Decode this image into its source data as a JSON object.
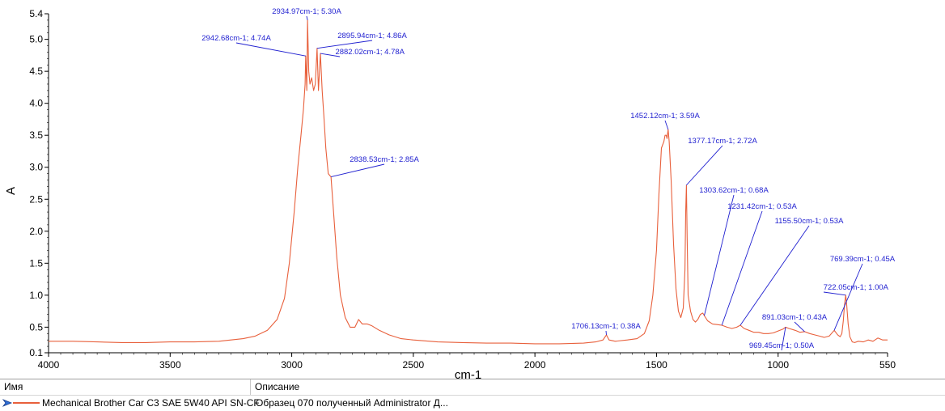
{
  "chart_data": {
    "type": "line",
    "xlabel": "cm-1",
    "ylabel": "A",
    "xlim": [
      4000,
      550
    ],
    "ylim": [
      0.1,
      5.4
    ],
    "x_ticks": [
      4000,
      3500,
      3000,
      2500,
      2000,
      1500,
      1000,
      550
    ],
    "y_ticks": [
      0.1,
      0.5,
      1.0,
      1.5,
      2.0,
      2.5,
      3.0,
      3.5,
      4.0,
      4.5,
      5.0,
      5.4
    ],
    "x_tick_labels": [
      "4000",
      "3500",
      "3000",
      "2500",
      "2000",
      "1500",
      "1000",
      "550"
    ],
    "y_tick_labels": [
      "0.1",
      "0.5",
      "1.0",
      "1.5",
      "2.0",
      "2.5",
      "3.0",
      "3.5",
      "4.0",
      "4.5",
      "5.0",
      "5.4"
    ],
    "series_color": "#e8603c",
    "annotation_color": "#1f1fd0",
    "series": [
      {
        "name": "Mechanical Brother Car C3 SAE 5W40 API SN-CF",
        "x": [
          4000,
          3900,
          3800,
          3700,
          3600,
          3500,
          3400,
          3300,
          3200,
          3150,
          3100,
          3060,
          3030,
          3010,
          2990,
          2975,
          2962,
          2952,
          2945,
          2942.68,
          2938,
          2934.97,
          2930,
          2925,
          2918,
          2910,
          2903,
          2895.94,
          2890,
          2882.02,
          2875,
          2868,
          2860,
          2850,
          2838.53,
          2830,
          2815,
          2800,
          2780,
          2760,
          2740,
          2725,
          2710,
          2690,
          2670,
          2640,
          2600,
          2550,
          2500,
          2400,
          2300,
          2200,
          2100,
          2000,
          1900,
          1800,
          1750,
          1720,
          1706.13,
          1695,
          1670,
          1620,
          1580,
          1550,
          1530,
          1515,
          1500,
          1490,
          1480,
          1470,
          1465,
          1460,
          1457,
          1452.12,
          1448,
          1440,
          1430,
          1420,
          1410,
          1400,
          1390,
          1383,
          1380,
          1377.17,
          1374,
          1370,
          1360,
          1350,
          1340,
          1330,
          1320,
          1310,
          1303.62,
          1290,
          1270,
          1250,
          1231.42,
          1210,
          1190,
          1170,
          1155.5,
          1140,
          1120,
          1100,
          1080,
          1060,
          1040,
          1020,
          1000,
          980,
          969.45,
          955,
          930,
          910,
          891.03,
          870,
          850,
          830,
          810,
          790,
          769.39,
          755,
          745,
          738,
          732,
          727,
          722.05,
          718,
          712,
          705,
          695,
          685,
          670,
          650,
          630,
          610,
          590,
          570,
          550
        ],
        "y": [
          0.28,
          0.28,
          0.27,
          0.26,
          0.26,
          0.27,
          0.27,
          0.28,
          0.32,
          0.36,
          0.45,
          0.62,
          0.95,
          1.5,
          2.3,
          3.0,
          3.5,
          3.9,
          4.3,
          4.74,
          4.2,
          5.3,
          4.5,
          4.3,
          4.4,
          4.2,
          4.3,
          4.86,
          4.2,
          4.78,
          4.2,
          3.8,
          3.3,
          2.9,
          2.85,
          2.4,
          1.6,
          1.0,
          0.65,
          0.5,
          0.5,
          0.62,
          0.55,
          0.55,
          0.52,
          0.45,
          0.38,
          0.32,
          0.3,
          0.27,
          0.26,
          0.25,
          0.25,
          0.24,
          0.24,
          0.25,
          0.27,
          0.3,
          0.38,
          0.3,
          0.28,
          0.3,
          0.32,
          0.4,
          0.6,
          1.0,
          1.7,
          2.6,
          3.3,
          3.4,
          3.5,
          3.5,
          3.45,
          3.59,
          3.4,
          2.8,
          1.8,
          1.1,
          0.75,
          0.65,
          0.8,
          1.4,
          2.3,
          2.72,
          1.9,
          1.0,
          0.75,
          0.62,
          0.58,
          0.62,
          0.7,
          0.72,
          0.68,
          0.6,
          0.55,
          0.54,
          0.53,
          0.5,
          0.48,
          0.5,
          0.53,
          0.48,
          0.45,
          0.42,
          0.42,
          0.4,
          0.4,
          0.41,
          0.44,
          0.47,
          0.5,
          0.48,
          0.45,
          0.42,
          0.43,
          0.4,
          0.38,
          0.36,
          0.34,
          0.36,
          0.45,
          0.38,
          0.35,
          0.4,
          0.6,
          0.85,
          1.0,
          0.85,
          0.55,
          0.35,
          0.27,
          0.26,
          0.28,
          0.27,
          0.3,
          0.28,
          0.33,
          0.3,
          0.3
        ]
      }
    ],
    "annotations": [
      {
        "x": 2934.97,
        "y": 5.3,
        "label": "2934.97cm-1; 5.30A"
      },
      {
        "x": 2942.68,
        "y": 4.74,
        "label": "2942.68cm-1; 4.74A"
      },
      {
        "x": 2895.94,
        "y": 4.86,
        "label": "2895.94cm-1; 4.86A"
      },
      {
        "x": 2882.02,
        "y": 4.78,
        "label": "2882.02cm-1; 4.78A"
      },
      {
        "x": 2838.53,
        "y": 2.85,
        "label": "2838.53cm-1; 2.85A"
      },
      {
        "x": 1452.12,
        "y": 3.59,
        "label": "1452.12cm-1; 3.59A"
      },
      {
        "x": 1377.17,
        "y": 2.72,
        "label": "1377.17cm-1; 2.72A"
      },
      {
        "x": 1303.62,
        "y": 0.68,
        "label": "1303.62cm-1; 0.68A"
      },
      {
        "x": 1231.42,
        "y": 0.53,
        "label": "1231.42cm-1; 0.53A"
      },
      {
        "x": 1155.5,
        "y": 0.53,
        "label": "1155.50cm-1; 0.53A"
      },
      {
        "x": 769.39,
        "y": 0.45,
        "label": "769.39cm-1; 0.45A"
      },
      {
        "x": 722.05,
        "y": 1.0,
        "label": "722.05cm-1; 1.00A"
      },
      {
        "x": 1706.13,
        "y": 0.38,
        "label": "1706.13cm-1; 0.38A"
      },
      {
        "x": 891.03,
        "y": 0.43,
        "label": "891.03cm-1; 0.43A"
      },
      {
        "x": 969.45,
        "y": 0.5,
        "label": "969.45cm-1; 0.50A"
      }
    ]
  },
  "legend_table": {
    "headers": {
      "name": "Имя",
      "description": "Описание"
    },
    "rows": [
      {
        "icon": "arrow-marker-icon",
        "name": "Mechanical Brother Car C3 SAE 5W40 API SN-CF",
        "description": "Образец 070 полученный Administrator Д..."
      }
    ]
  }
}
